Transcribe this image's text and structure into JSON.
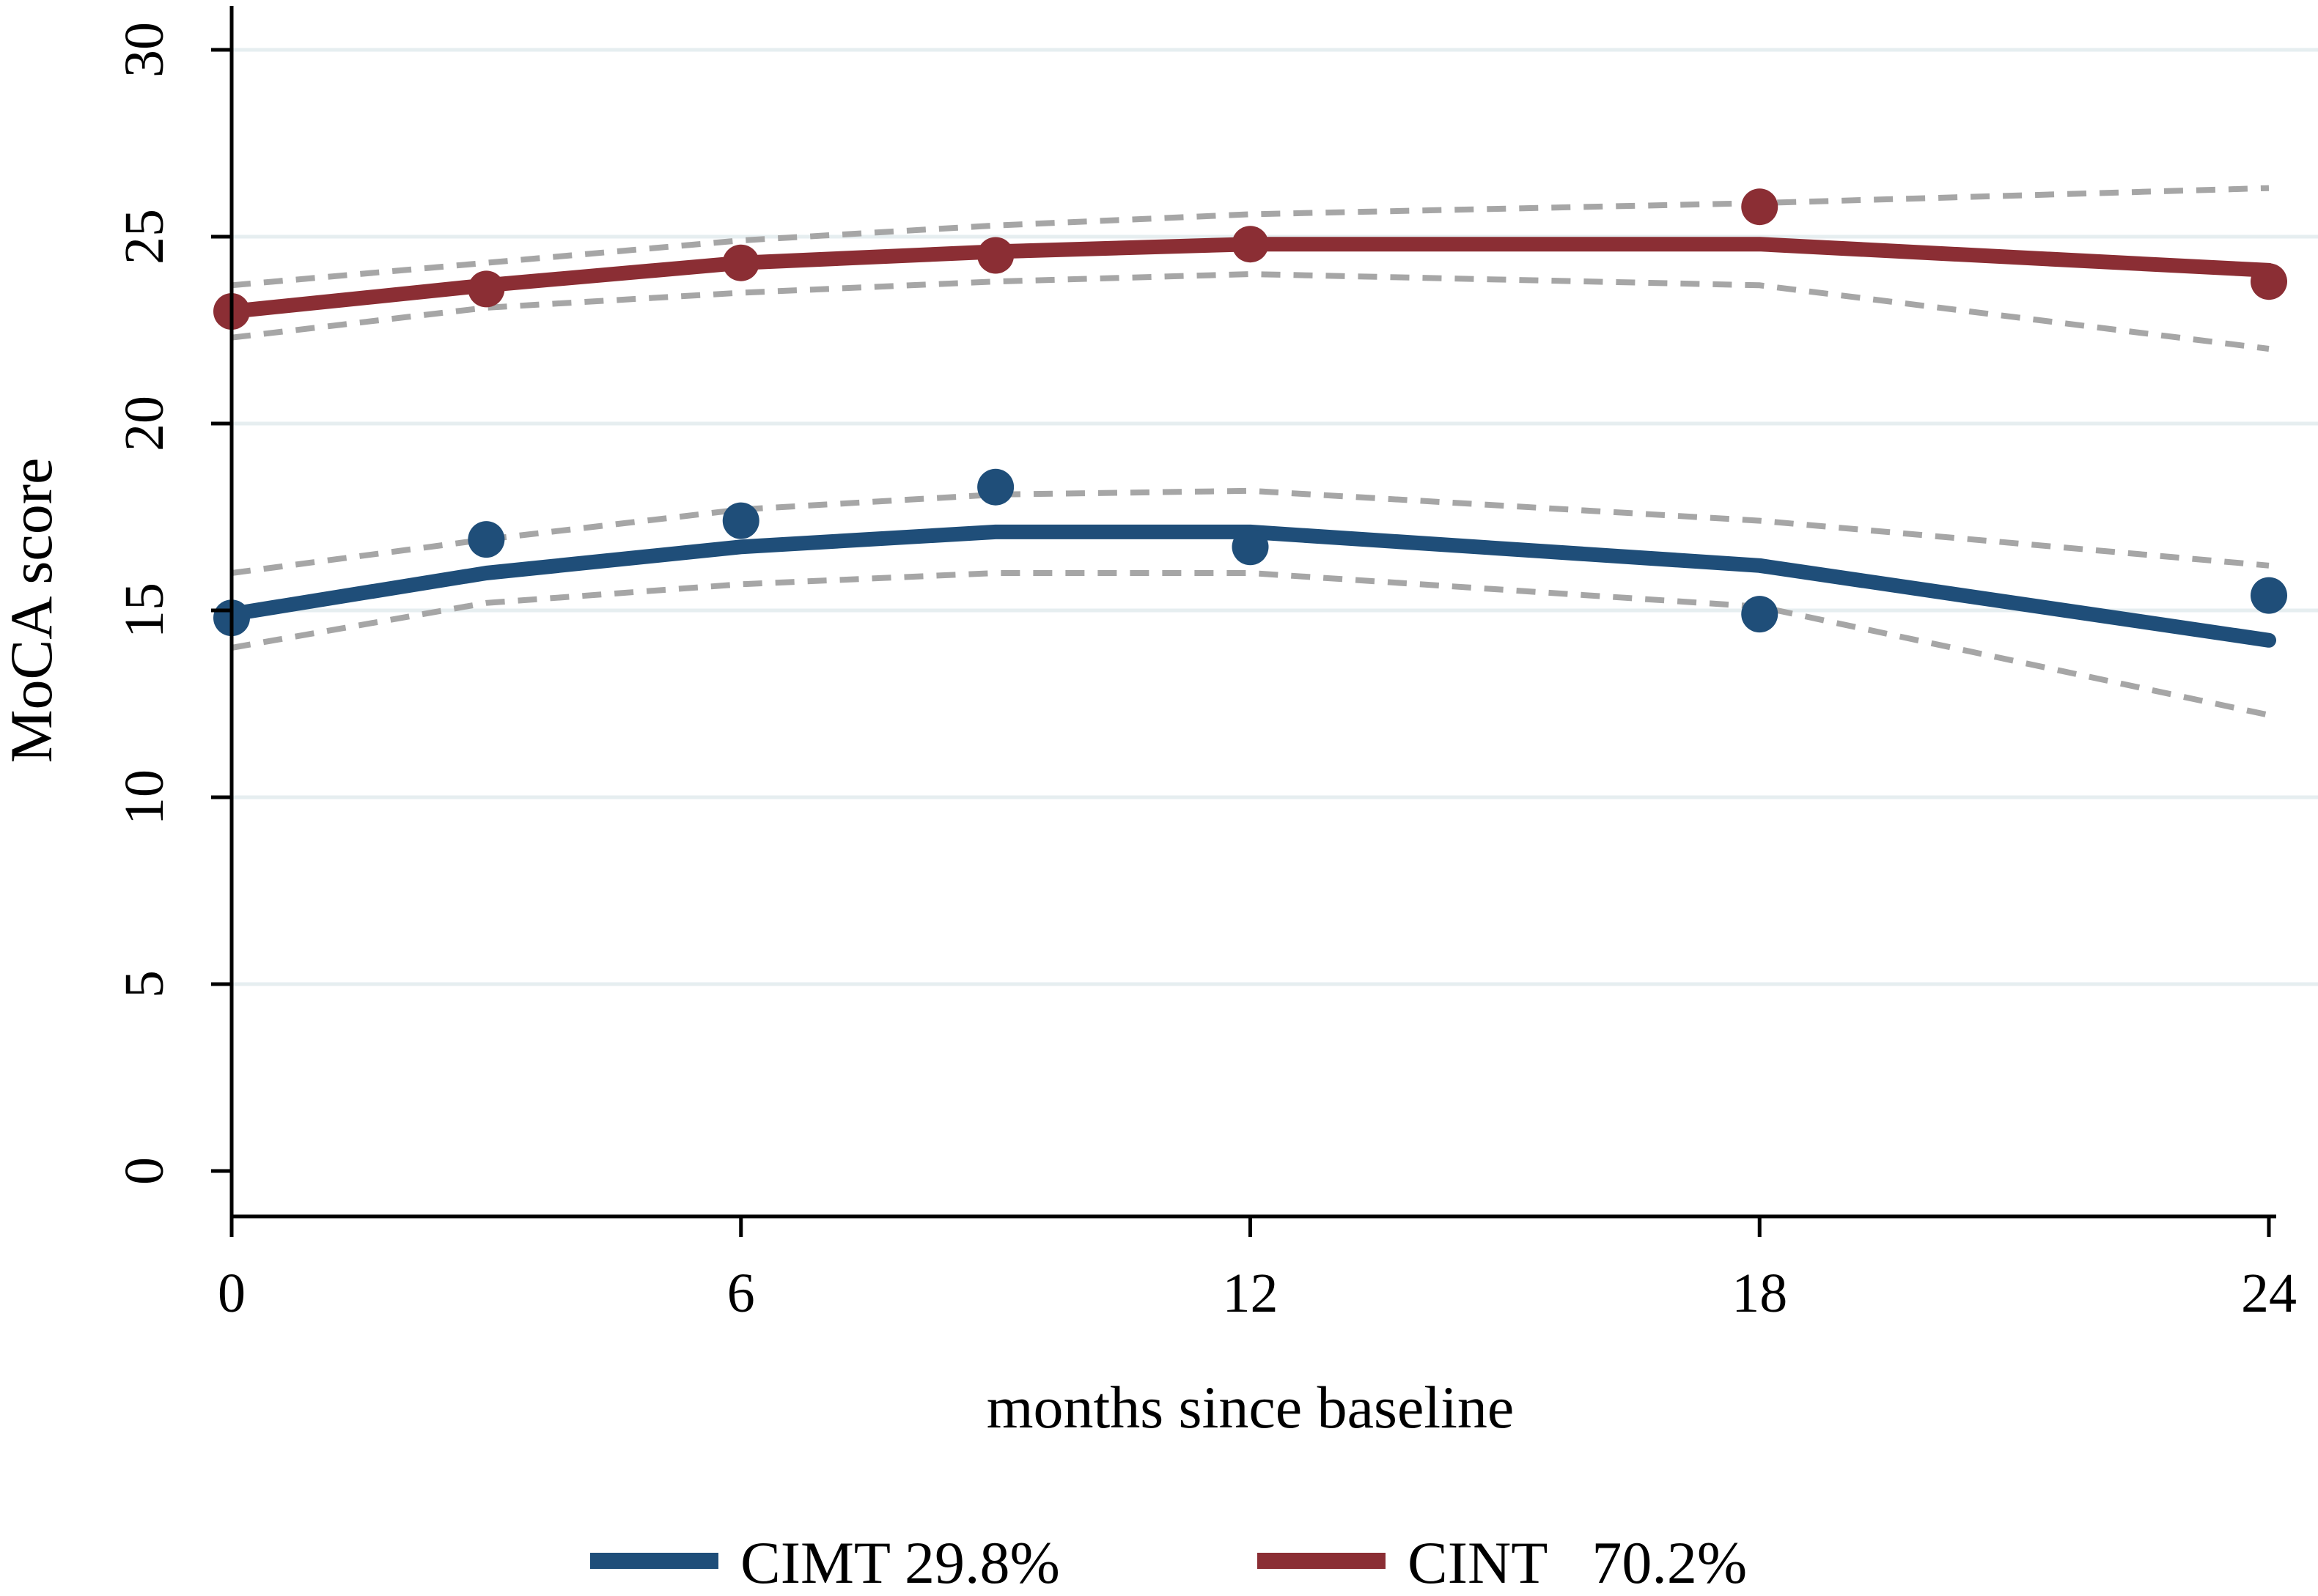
{
  "chart_data": {
    "type": "line",
    "title": "",
    "xlabel": "months since baseline",
    "ylabel": "MoCA score",
    "xlim": [
      0,
      24
    ],
    "ylim": [
      0,
      30
    ],
    "x_ticks": [
      0,
      6,
      12,
      18,
      24
    ],
    "y_ticks": [
      0,
      5,
      10,
      15,
      20,
      25,
      30
    ],
    "x_tick_labels": [
      "0",
      "6",
      "12",
      "18",
      "24"
    ],
    "y_tick_labels": [
      "0",
      "5",
      "10",
      "15",
      "20",
      "25",
      "30"
    ],
    "grid": "horizontal",
    "legend_position": "bottom",
    "series": [
      {
        "name": "CIMT 29.8%",
        "label": "CIMT 29.8%",
        "color": "#1f4e79",
        "fit_x": [
          0,
          3,
          6,
          9,
          12,
          18,
          24
        ],
        "fit_y": [
          14.9,
          16.0,
          16.7,
          17.1,
          17.1,
          16.2,
          14.2
        ],
        "ci_upper": [
          16.0,
          16.9,
          17.7,
          18.1,
          18.2,
          17.4,
          16.2
        ],
        "ci_lower": [
          14.0,
          15.2,
          15.7,
          16.0,
          16.0,
          15.1,
          12.2
        ],
        "observed_x": [
          0,
          3,
          6,
          9,
          12,
          18,
          24
        ],
        "observed_y": [
          14.8,
          16.9,
          17.4,
          18.3,
          16.7,
          14.9,
          15.4
        ]
      },
      {
        "name": "CINT 70.2%",
        "label": "CINT   70.2%",
        "color": "#8b2e34",
        "fit_x": [
          0,
          3,
          6,
          9,
          12,
          18,
          24
        ],
        "fit_y": [
          23.0,
          23.7,
          24.3,
          24.6,
          24.8,
          24.8,
          24.1
        ],
        "ci_upper": [
          23.7,
          24.3,
          24.9,
          25.3,
          25.6,
          25.9,
          26.3
        ],
        "ci_lower": [
          22.3,
          23.1,
          23.5,
          23.8,
          24.0,
          23.7,
          22.0
        ],
        "observed_x": [
          0,
          3,
          6,
          9,
          12,
          18,
          24
        ],
        "observed_y": [
          23.0,
          23.6,
          24.3,
          24.5,
          24.8,
          25.8,
          23.8
        ]
      }
    ]
  }
}
